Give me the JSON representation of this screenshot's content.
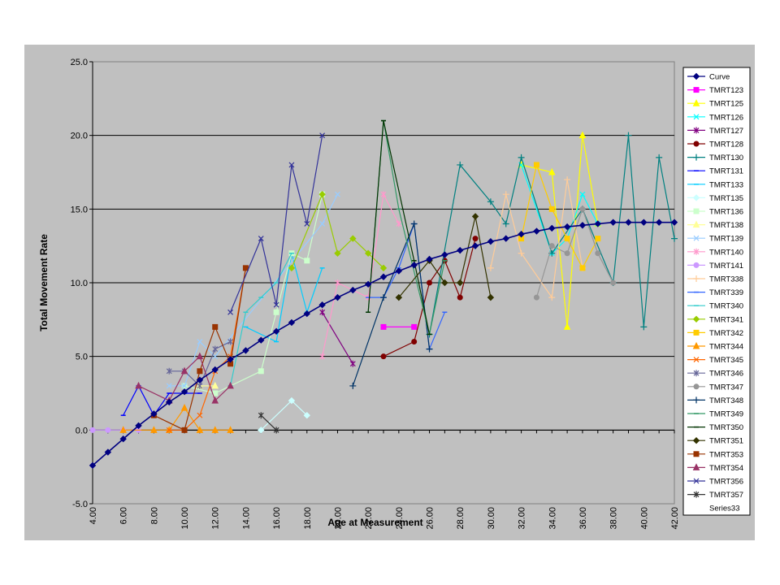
{
  "chart_data": {
    "type": "line",
    "title": "",
    "xlabel": "Age at Measurement",
    "ylabel": "Total Movement Rate",
    "xlim": [
      4,
      42
    ],
    "ylim": [
      -5,
      25
    ],
    "x_ticks": [
      "4.00",
      "6.00",
      "8.00",
      "10.00",
      "12.00",
      "14.00",
      "16.00",
      "18.00",
      "20.00",
      "22.00",
      "24.00",
      "26.00",
      "28.00",
      "30.00",
      "32.00",
      "34.00",
      "36.00",
      "38.00",
      "40.00",
      "42.00"
    ],
    "y_ticks": [
      "-5.0",
      "0.0",
      "5.0",
      "10.0",
      "15.0",
      "20.0",
      "25.0"
    ],
    "grid": "horizontal major gridlines",
    "legend_position": "right",
    "series": [
      {
        "name": "Curve",
        "color": "#000080",
        "marker": "diamond",
        "points": [
          [
            4,
            -2.4
          ],
          [
            5,
            -1.5
          ],
          [
            6,
            -0.6
          ],
          [
            7,
            0.3
          ],
          [
            8,
            1.1
          ],
          [
            9,
            1.9
          ],
          [
            10,
            2.6
          ],
          [
            11,
            3.4
          ],
          [
            12,
            4.1
          ],
          [
            13,
            4.8
          ],
          [
            14,
            5.4
          ],
          [
            15,
            6.1
          ],
          [
            16,
            6.7
          ],
          [
            17,
            7.3
          ],
          [
            18,
            7.9
          ],
          [
            19,
            8.5
          ],
          [
            20,
            9
          ],
          [
            21,
            9.5
          ],
          [
            22,
            9.9
          ],
          [
            23,
            10.4
          ],
          [
            24,
            10.8
          ],
          [
            25,
            11.2
          ],
          [
            26,
            11.6
          ],
          [
            27,
            11.9
          ],
          [
            28,
            12.2
          ],
          [
            29,
            12.5
          ],
          [
            30,
            12.8
          ],
          [
            31,
            13
          ],
          [
            32,
            13.3
          ],
          [
            33,
            13.5
          ],
          [
            34,
            13.7
          ],
          [
            35,
            13.8
          ],
          [
            36,
            13.9
          ],
          [
            37,
            14
          ],
          [
            38,
            14.1
          ],
          [
            39,
            14.1
          ],
          [
            40,
            14.1
          ],
          [
            41,
            14.1
          ],
          [
            42,
            14.1
          ]
        ]
      },
      {
        "name": "TMRT123",
        "color": "#ff00ff",
        "marker": "square",
        "points": [
          [
            23,
            7
          ],
          [
            25,
            7
          ]
        ]
      },
      {
        "name": "TMRT125",
        "color": "#ffff00",
        "marker": "triangle",
        "points": [
          [
            32,
            18
          ],
          [
            34,
            17.5
          ],
          [
            35,
            7
          ],
          [
            36,
            20
          ],
          [
            37,
            14
          ]
        ]
      },
      {
        "name": "TMRT126",
        "color": "#00ffff",
        "marker": "x",
        "points": [
          [
            32,
            18
          ],
          [
            34,
            12
          ],
          [
            35,
            13
          ],
          [
            36,
            16
          ],
          [
            37,
            14
          ]
        ]
      },
      {
        "name": "TMRT127",
        "color": "#800080",
        "marker": "star",
        "points": [
          [
            19,
            8
          ],
          [
            21,
            4.5
          ]
        ]
      },
      {
        "name": "TMRT128",
        "color": "#800000",
        "marker": "circle",
        "points": [
          [
            23,
            5
          ],
          [
            25,
            6
          ],
          [
            26,
            10
          ],
          [
            27,
            11.5
          ],
          [
            28,
            9
          ],
          [
            29,
            13
          ]
        ]
      },
      {
        "name": "TMRT130",
        "color": "#008080",
        "marker": "plus",
        "points": [
          [
            26,
            6.5
          ],
          [
            28,
            18
          ],
          [
            30,
            15.5
          ],
          [
            31,
            14
          ],
          [
            32,
            18.5
          ],
          [
            34,
            12
          ],
          [
            36,
            15
          ],
          [
            38,
            10
          ],
          [
            39,
            20
          ],
          [
            40,
            7
          ],
          [
            41,
            18.5
          ],
          [
            42,
            13
          ]
        ]
      },
      {
        "name": "TMRT131",
        "color": "#0000ff",
        "marker": "dash",
        "points": [
          [
            6,
            1
          ],
          [
            7,
            3
          ],
          [
            8,
            1
          ],
          [
            9,
            2.5
          ],
          [
            10,
            2.5
          ],
          [
            11,
            2.5
          ]
        ]
      },
      {
        "name": "TMRT133",
        "color": "#00ccff",
        "marker": "dash",
        "points": [
          [
            14,
            7
          ],
          [
            16,
            6
          ],
          [
            17,
            12
          ],
          [
            18,
            8
          ],
          [
            19,
            11
          ]
        ]
      },
      {
        "name": "TMRT135",
        "color": "#ccffff",
        "marker": "diamond",
        "points": [
          [
            15,
            0
          ],
          [
            17,
            2
          ],
          [
            18,
            1
          ]
        ]
      },
      {
        "name": "TMRT136",
        "color": "#ccffcc",
        "marker": "square",
        "points": [
          [
            10,
            3
          ],
          [
            12,
            2.5
          ],
          [
            15,
            4
          ],
          [
            16,
            8
          ],
          [
            17,
            12
          ],
          [
            18,
            11.5
          ],
          [
            19,
            16
          ]
        ]
      },
      {
        "name": "TMRT138",
        "color": "#ffff99",
        "marker": "triangle",
        "points": [
          [
            11,
            3
          ],
          [
            12,
            3
          ]
        ]
      },
      {
        "name": "TMRT139",
        "color": "#99ccff",
        "marker": "x",
        "points": [
          [
            9,
            3
          ],
          [
            10,
            3
          ],
          [
            11,
            6
          ],
          [
            12,
            5
          ],
          [
            19,
            14
          ],
          [
            20,
            16
          ]
        ]
      },
      {
        "name": "TMRT140",
        "color": "#ff99cc",
        "marker": "star",
        "points": [
          [
            19,
            5
          ],
          [
            20,
            10
          ],
          [
            22,
            9
          ],
          [
            23,
            16
          ],
          [
            24,
            14
          ]
        ]
      },
      {
        "name": "TMRT141",
        "color": "#cc99ff",
        "marker": "circle",
        "points": [
          [
            4,
            0
          ],
          [
            5,
            0
          ],
          [
            6,
            0
          ],
          [
            7,
            0
          ]
        ]
      },
      {
        "name": "TMRT338",
        "color": "#ffcc99",
        "marker": "plus",
        "points": [
          [
            30,
            11
          ],
          [
            31,
            16
          ],
          [
            32,
            12
          ],
          [
            34,
            9
          ],
          [
            35,
            17
          ],
          [
            36,
            11
          ]
        ]
      },
      {
        "name": "TMRT339",
        "color": "#3366ff",
        "marker": "dash",
        "points": [
          [
            22,
            9
          ],
          [
            23,
            9
          ],
          [
            24,
            11
          ],
          [
            25,
            14
          ],
          [
            26,
            5.5
          ],
          [
            27,
            8
          ]
        ]
      },
      {
        "name": "TMRT340",
        "color": "#33cccc",
        "marker": "dash",
        "points": [
          [
            13,
            3
          ],
          [
            14,
            8
          ],
          [
            15,
            9
          ],
          [
            16,
            10
          ],
          [
            17,
            12
          ]
        ]
      },
      {
        "name": "TMRT341",
        "color": "#99cc00",
        "marker": "diamond",
        "points": [
          [
            17,
            11
          ],
          [
            19,
            16
          ],
          [
            20,
            12
          ],
          [
            21,
            13
          ],
          [
            22,
            12
          ],
          [
            23,
            11
          ]
        ]
      },
      {
        "name": "TMRT342",
        "color": "#ffcc00",
        "marker": "square",
        "points": [
          [
            32,
            13
          ],
          [
            33,
            18
          ],
          [
            34,
            15
          ],
          [
            35,
            13
          ],
          [
            36,
            11
          ],
          [
            37,
            13
          ]
        ]
      },
      {
        "name": "TMRT344",
        "color": "#ff9900",
        "marker": "triangle",
        "points": [
          [
            6,
            0
          ],
          [
            8,
            0
          ],
          [
            9,
            0
          ],
          [
            10,
            1.5
          ],
          [
            11,
            0
          ],
          [
            12,
            0
          ],
          [
            13,
            0
          ]
        ]
      },
      {
        "name": "TMRT345",
        "color": "#ff6600",
        "marker": "x",
        "points": [
          [
            9,
            0
          ],
          [
            10,
            0
          ],
          [
            11,
            1
          ],
          [
            12,
            4
          ],
          [
            13,
            5
          ],
          [
            14,
            11
          ]
        ]
      },
      {
        "name": "TMRT346",
        "color": "#666699",
        "marker": "star",
        "points": [
          [
            9,
            4
          ],
          [
            10,
            4
          ],
          [
            11,
            3
          ],
          [
            12,
            5.5
          ],
          [
            13,
            6
          ]
        ]
      },
      {
        "name": "TMRT347",
        "color": "#969696",
        "marker": "circle",
        "points": [
          [
            33,
            9
          ],
          [
            34,
            12.5
          ],
          [
            35,
            12
          ],
          [
            36,
            15
          ],
          [
            37,
            12
          ],
          [
            38,
            10
          ]
        ]
      },
      {
        "name": "TMRT348",
        "color": "#003366",
        "marker": "plus",
        "points": [
          [
            21,
            3
          ],
          [
            23,
            9
          ],
          [
            25,
            14
          ],
          [
            26,
            5.5
          ]
        ]
      },
      {
        "name": "TMRT349",
        "color": "#339966",
        "marker": "dash",
        "points": [
          [
            22,
            8
          ],
          [
            23,
            21
          ],
          [
            24,
            15
          ],
          [
            26,
            6.5
          ],
          [
            27,
            11.5
          ]
        ]
      },
      {
        "name": "TMRT350",
        "color": "#003300",
        "marker": "dash",
        "points": [
          [
            22,
            8
          ],
          [
            23,
            21
          ],
          [
            25,
            11.5
          ],
          [
            26,
            6.5
          ]
        ]
      },
      {
        "name": "TMRT351",
        "color": "#333300",
        "marker": "diamond",
        "points": [
          [
            24,
            9
          ],
          [
            26,
            11.5
          ],
          [
            27,
            10
          ],
          [
            28,
            10
          ],
          [
            29,
            14.5
          ],
          [
            30,
            9
          ]
        ]
      },
      {
        "name": "TMRT353",
        "color": "#993300",
        "marker": "square",
        "points": [
          [
            8,
            1
          ],
          [
            10,
            0
          ],
          [
            11,
            4
          ],
          [
            12,
            7
          ],
          [
            13,
            4.5
          ],
          [
            14,
            11
          ]
        ]
      },
      {
        "name": "TMRT354",
        "color": "#993366",
        "marker": "triangle",
        "points": [
          [
            7,
            3
          ],
          [
            9,
            2
          ],
          [
            10,
            4
          ],
          [
            11,
            5
          ],
          [
            12,
            2
          ],
          [
            13,
            3
          ]
        ]
      },
      {
        "name": "TMRT356",
        "color": "#333399",
        "marker": "x",
        "points": [
          [
            13,
            8
          ],
          [
            15,
            13
          ],
          [
            16,
            8.5
          ],
          [
            17,
            18
          ],
          [
            18,
            14
          ],
          [
            19,
            20
          ]
        ]
      },
      {
        "name": "TMRT357",
        "color": "#333333",
        "marker": "star",
        "points": [
          [
            15,
            1
          ],
          [
            16,
            0
          ]
        ]
      },
      {
        "name": "Series33",
        "color": "#c0c0c0",
        "marker": "none",
        "points": []
      }
    ]
  }
}
